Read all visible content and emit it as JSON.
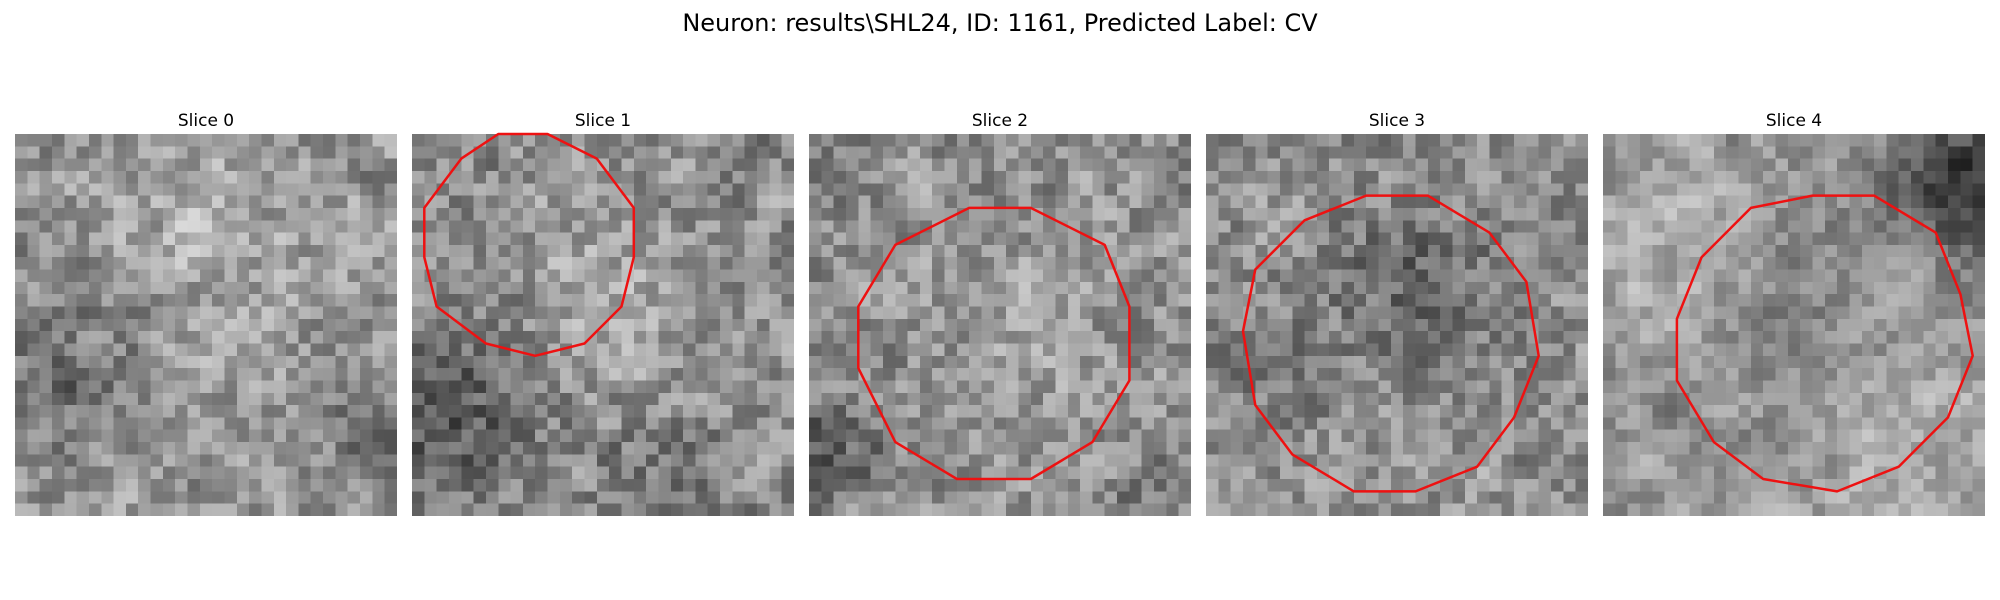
{
  "figure": {
    "title": "Neuron: results\\SHL24, ID: 1161, Predicted Label: CV"
  },
  "colors": {
    "contour": "#ee1111",
    "colormap": "gray"
  },
  "panels": [
    {
      "title": "Slice 0",
      "has_contour": false
    },
    {
      "title": "Slice 1",
      "has_contour": true
    },
    {
      "title": "Slice 2",
      "has_contour": true
    },
    {
      "title": "Slice 3",
      "has_contour": true
    },
    {
      "title": "Slice 4",
      "has_contour": true
    }
  ]
}
